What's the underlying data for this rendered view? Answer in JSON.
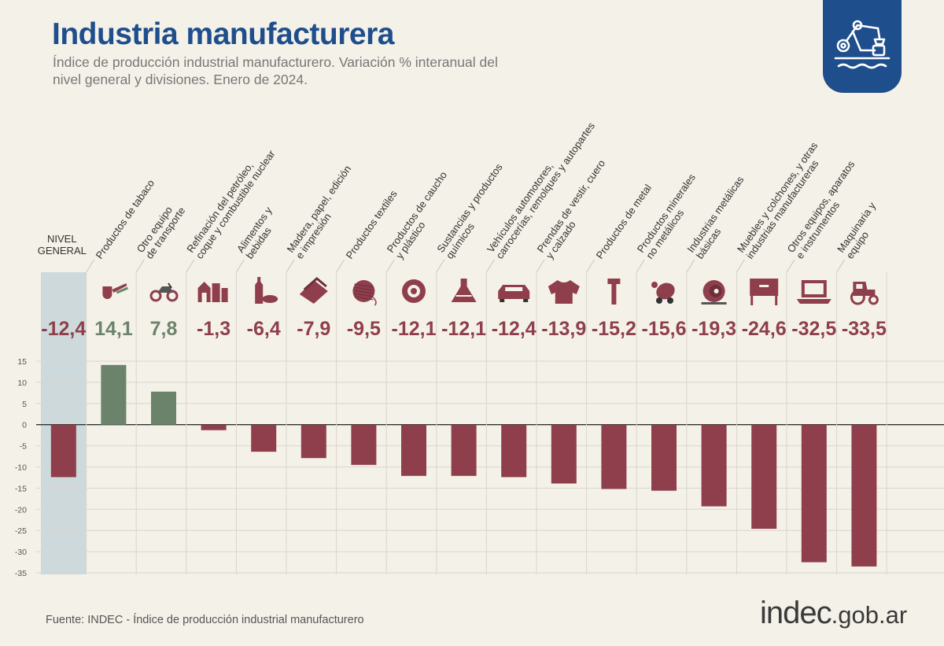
{
  "header": {
    "title": "Industria manufacturera",
    "subtitle": "Índice de producción industrial manufacturero. Variación % interanual del nivel general y divisiones. Enero de 2024."
  },
  "footer": {
    "source": "Fuente: INDEC - Índice de producción industrial manufacturero",
    "brand_main": "indec",
    "brand_domain": ".gob.ar"
  },
  "colors": {
    "positive": "#6b836b",
    "negative": "#8f3e4c",
    "value_text": "#8f3e4c",
    "highlight": "#cdd9db",
    "title": "#1f4e8c"
  },
  "chart_data": {
    "type": "bar",
    "title": "Industria manufacturera",
    "subtitle": "Índice de producción industrial manufacturero. Variación % interanual del nivel general y divisiones. Enero de 2024.",
    "ylim": [
      -35,
      15
    ],
    "yticks": [
      15,
      10,
      5,
      0,
      -5,
      -10,
      -15,
      -20,
      -25,
      -30,
      -35
    ],
    "grid": true,
    "highlight_category": 0,
    "categories": [
      {
        "lines": [
          "NIVEL",
          "GENERAL"
        ],
        "value": -12.4,
        "label": "-12,4",
        "icon": "none"
      },
      {
        "lines": [
          "Productos de tabaco"
        ],
        "value": 14.1,
        "label": "14,1",
        "icon": "pipe-icon"
      },
      {
        "lines": [
          "Otro equipo",
          "de transporte"
        ],
        "value": 7.8,
        "label": "7,8",
        "icon": "motorcycle-icon"
      },
      {
        "lines": [
          "Refinación del petróleo,",
          "coque y combustible nuclear"
        ],
        "value": -1.3,
        "label": "-1,3",
        "icon": "refinery-icon"
      },
      {
        "lines": [
          "Alimentos y",
          "bebidas"
        ],
        "value": -6.4,
        "label": "-6,4",
        "icon": "bottle-bread-icon"
      },
      {
        "lines": [
          "Madera, papel, edición",
          "e impresión"
        ],
        "value": -7.9,
        "label": "-7,9",
        "icon": "paper-icon"
      },
      {
        "lines": [
          "Productos textiles"
        ],
        "value": -9.5,
        "label": "-9,5",
        "icon": "thread-spool-icon"
      },
      {
        "lines": [
          "Productos de caucho",
          "y plástico"
        ],
        "value": -12.1,
        "label": "-12,1",
        "icon": "tire-icon"
      },
      {
        "lines": [
          "Sustancias y productos",
          "químicos"
        ],
        "value": -12.1,
        "label": "-12,1",
        "icon": "flask-icon"
      },
      {
        "lines": [
          "Vehículos automotores,",
          "carrocerías, remolques y autopartes"
        ],
        "value": -12.4,
        "label": "-12,4",
        "icon": "car-icon"
      },
      {
        "lines": [
          "Prendas de vestir, cuero",
          "y calzado"
        ],
        "value": -13.9,
        "label": "-13,9",
        "icon": "shirt-icon"
      },
      {
        "lines": [
          "Productos de metal"
        ],
        "value": -15.2,
        "label": "-15,2",
        "icon": "bolt-icon"
      },
      {
        "lines": [
          "Productos minerales",
          "no metálicos"
        ],
        "value": -15.6,
        "label": "-15,6",
        "icon": "cement-mixer-icon"
      },
      {
        "lines": [
          "Industrias metálicas",
          "básicas"
        ],
        "value": -19.3,
        "label": "-19,3",
        "icon": "steel-coil-icon"
      },
      {
        "lines": [
          "Muebles y colchones, y otras",
          "industrias manufactureras"
        ],
        "value": -24.6,
        "label": "-24,6",
        "icon": "furniture-icon"
      },
      {
        "lines": [
          "Otros equipos, aparatos",
          "e instrumentos"
        ],
        "value": -32.5,
        "label": "-32,5",
        "icon": "laptop-icon"
      },
      {
        "lines": [
          "Maquinaria y",
          "equipo"
        ],
        "value": -33.5,
        "label": "-33,5",
        "icon": "tractor-icon"
      }
    ]
  }
}
